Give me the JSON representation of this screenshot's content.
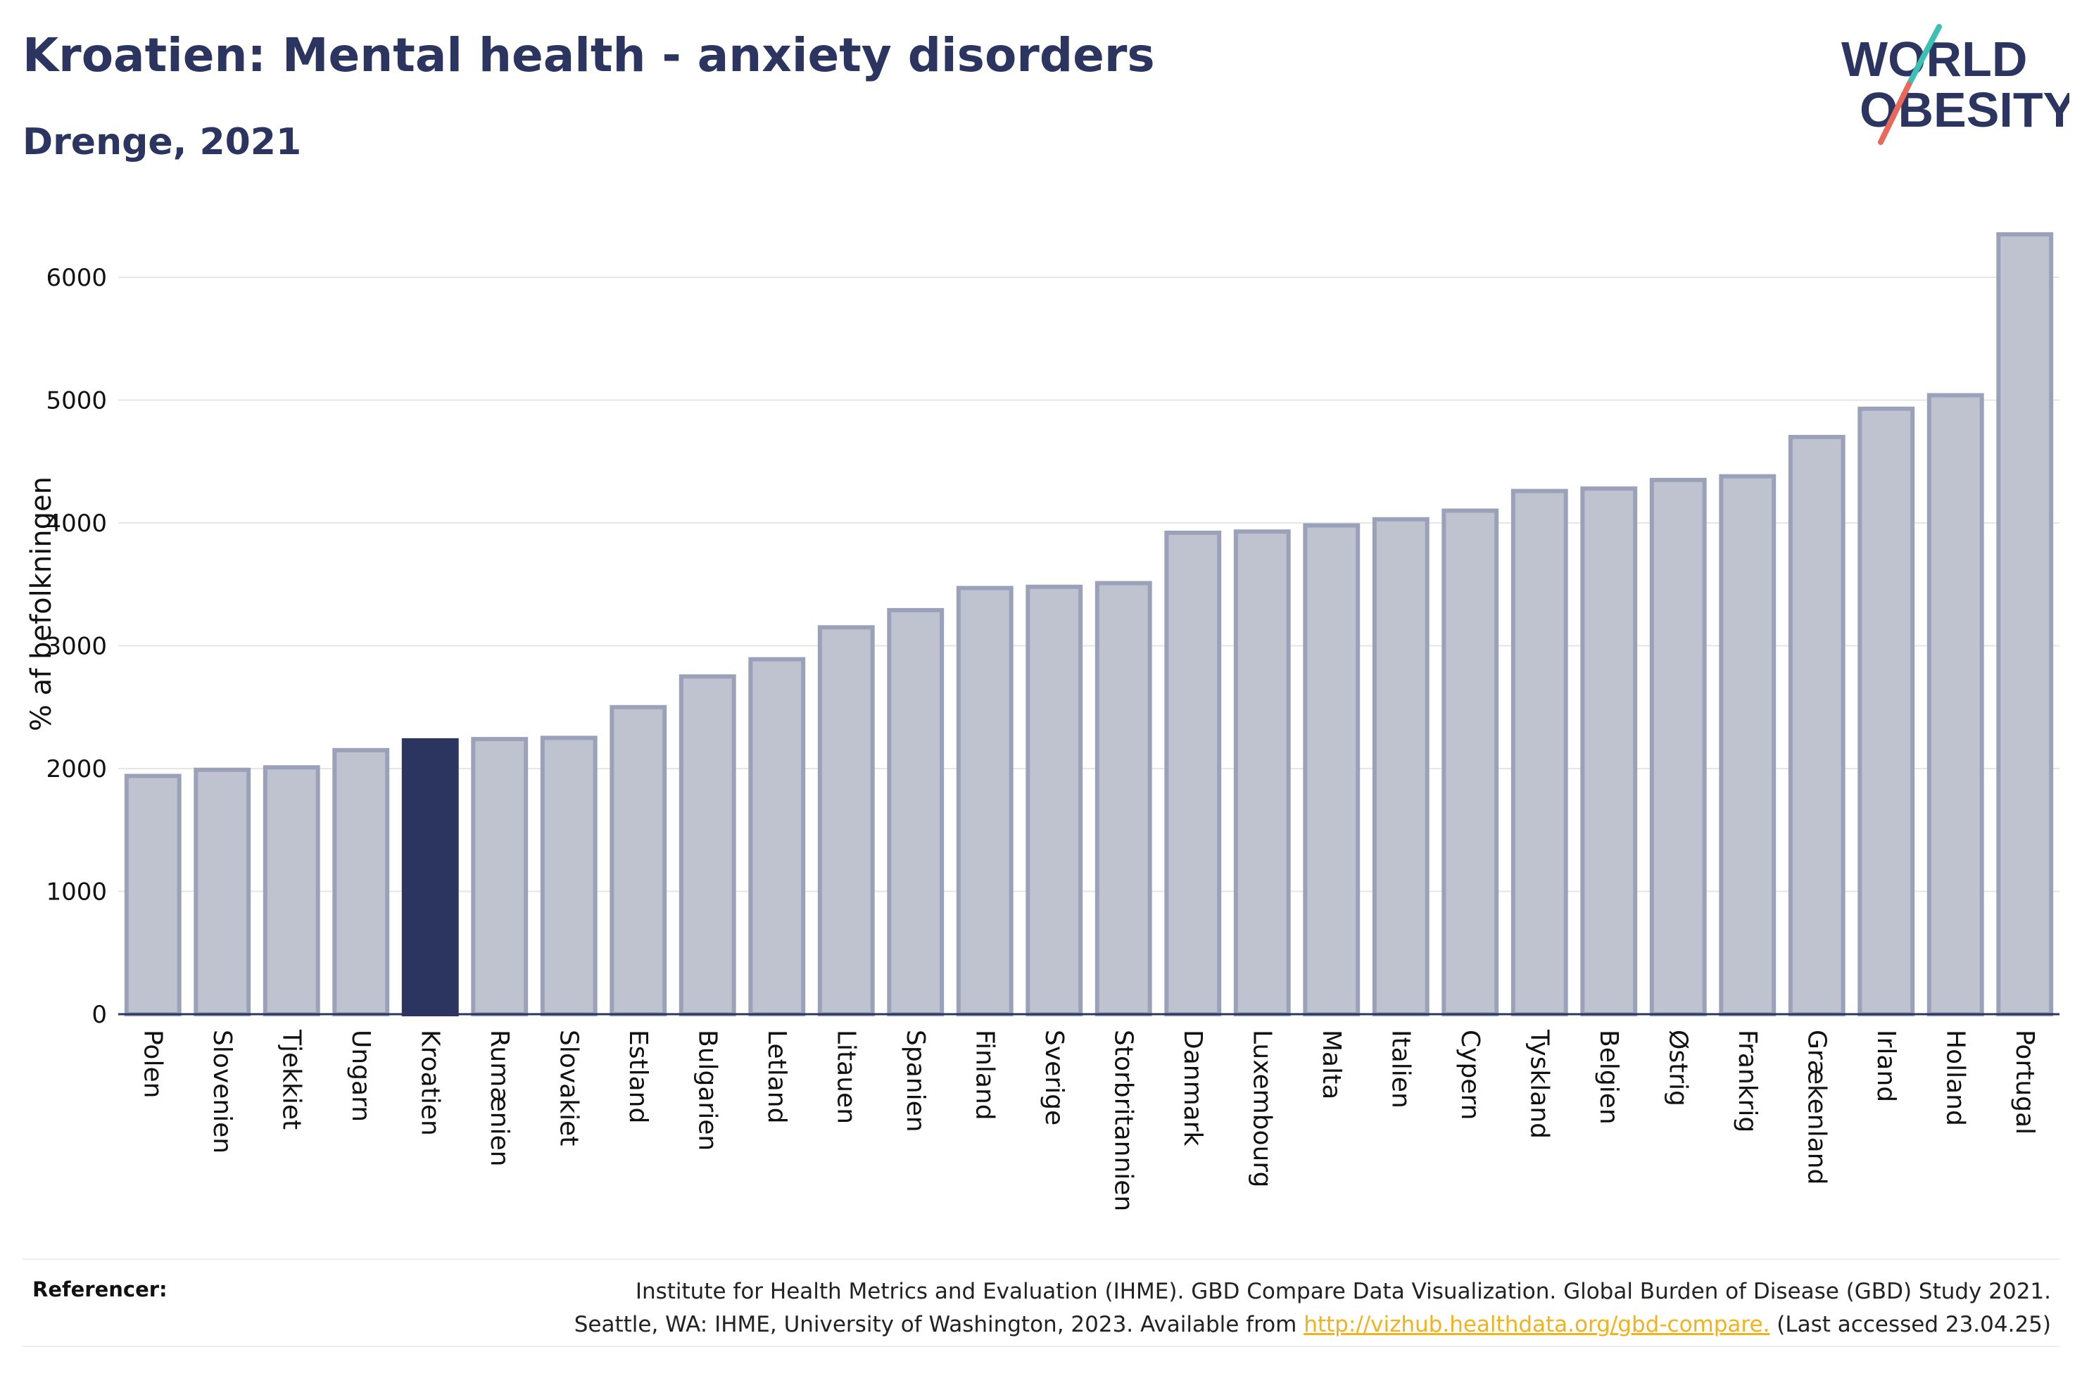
{
  "header": {
    "title": "Kroatien: Mental health - anxiety disorders",
    "subtitle": "Drenge, 2021"
  },
  "logo": {
    "line1": "WORLD",
    "line2": "OBESITY",
    "colors": {
      "text": "#2b3560",
      "slash_top": "#3dbfb3",
      "slash_bottom": "#e8685a"
    }
  },
  "colors": {
    "bar": "#bfc3d0",
    "bar_border": "#9aa1b9",
    "highlight": "#2b3560",
    "grid": "#e6e6e6",
    "axis": "#2b3560"
  },
  "chart_data": {
    "type": "bar",
    "title": "Kroatien: Mental health - anxiety disorders",
    "subtitle": "Drenge, 2021",
    "xlabel": "",
    "ylabel": "% af befolkningen",
    "categories": [
      "Polen",
      "Slovenien",
      "Tjekkiet",
      "Ungarn",
      "Kroatien",
      "Rumænien",
      "Slovakiet",
      "Estland",
      "Bulgarien",
      "Letland",
      "Litauen",
      "Spanien",
      "Finland",
      "Sverige",
      "Storbritannien",
      "Danmark",
      "Luxembourg",
      "Malta",
      "Italien",
      "Cypern",
      "Tyskland",
      "Belgien",
      "Østrig",
      "Frankrig",
      "Grækenland",
      "Irland",
      "Holland",
      "Portugal"
    ],
    "values": [
      1940,
      1990,
      2010,
      2150,
      2230,
      2240,
      2250,
      2500,
      2750,
      2890,
      3150,
      3290,
      3470,
      3480,
      3510,
      3920,
      3930,
      3980,
      4030,
      4100,
      4260,
      4280,
      4350,
      4380,
      4700,
      4930,
      5040,
      6350
    ],
    "highlight": "Kroatien",
    "ylim": [
      0,
      6600
    ],
    "yticks": [
      0,
      1000,
      2000,
      3000,
      4000,
      5000,
      6000
    ],
    "grid": true,
    "legend": "none"
  },
  "references": {
    "label": "Referencer:",
    "line1": "Institute for Health Metrics and Evaluation (IHME). GBD Compare Data Visualization. Global Burden of Disease (GBD) Study 2021.",
    "line2_before": "Seattle, WA: IHME, University of Washington, 2023. Available from ",
    "link": "http://vizhub.healthdata.org/gbd-compare.",
    "line2_after": " (Last accessed 23.04.25)"
  }
}
